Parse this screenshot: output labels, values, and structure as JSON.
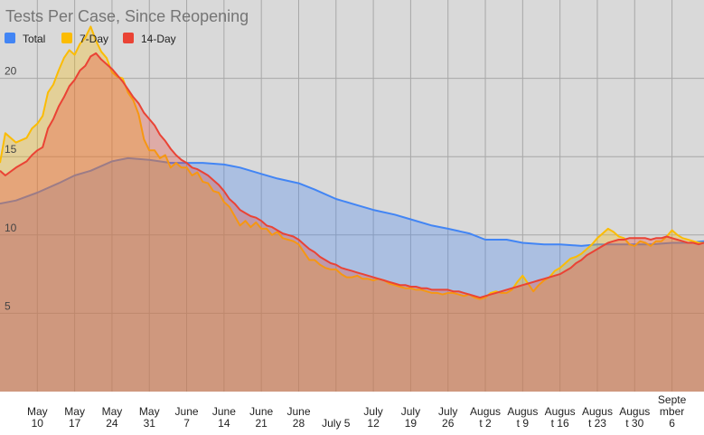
{
  "chart_data": {
    "type": "area",
    "title": "Tests Per Case, Since Reopening",
    "xlabel": "",
    "ylabel": "",
    "ylim": [
      0,
      25
    ],
    "grid": true,
    "legend_position": "top-left",
    "colors": {
      "plot_background": "#d9d9d9",
      "gridline": "#a8a8a8",
      "total": "#4285f4",
      "7-day": "#fbbc04",
      "14-day": "#ea4335"
    },
    "y_ticks": [
      5,
      10,
      15,
      20
    ],
    "x_ticks": [
      {
        "day": 10,
        "lines": [
          "May",
          "10"
        ]
      },
      {
        "day": 17,
        "lines": [
          "May",
          "17"
        ]
      },
      {
        "day": 24,
        "lines": [
          "May",
          "24"
        ]
      },
      {
        "day": 31,
        "lines": [
          "May",
          "31"
        ]
      },
      {
        "day": 38,
        "lines": [
          "June",
          "7"
        ]
      },
      {
        "day": 45,
        "lines": [
          "June",
          "14"
        ]
      },
      {
        "day": 52,
        "lines": [
          "June",
          "21"
        ]
      },
      {
        "day": 59,
        "lines": [
          "June",
          "28"
        ]
      },
      {
        "day": 66,
        "lines": [
          "July 5"
        ]
      },
      {
        "day": 73,
        "lines": [
          "July",
          "12"
        ]
      },
      {
        "day": 80,
        "lines": [
          "July",
          "19"
        ]
      },
      {
        "day": 87,
        "lines": [
          "July",
          "26"
        ]
      },
      {
        "day": 94,
        "lines": [
          "Augus",
          "t 2"
        ]
      },
      {
        "day": 101,
        "lines": [
          "Augus",
          "t 9"
        ]
      },
      {
        "day": 108,
        "lines": [
          "Augus",
          "t 16"
        ]
      },
      {
        "day": 115,
        "lines": [
          "Augus",
          "t 23"
        ]
      },
      {
        "day": 122,
        "lines": [
          "Augus",
          "t 30"
        ]
      },
      {
        "day": 129,
        "lines": [
          "Septe",
          "mber",
          "6"
        ]
      }
    ],
    "x_range": [
      3,
      135
    ],
    "series": [
      {
        "name": "Total",
        "points": [
          [
            3,
            12.0
          ],
          [
            6,
            12.2
          ],
          [
            10,
            12.7
          ],
          [
            14,
            13.3
          ],
          [
            17,
            13.8
          ],
          [
            20,
            14.1
          ],
          [
            24,
            14.7
          ],
          [
            27,
            14.9
          ],
          [
            31,
            14.8
          ],
          [
            35,
            14.6
          ],
          [
            38,
            14.6
          ],
          [
            41,
            14.6
          ],
          [
            45,
            14.5
          ],
          [
            48,
            14.3
          ],
          [
            52,
            13.9
          ],
          [
            55,
            13.6
          ],
          [
            59,
            13.3
          ],
          [
            62,
            12.9
          ],
          [
            66,
            12.3
          ],
          [
            70,
            11.9
          ],
          [
            73,
            11.6
          ],
          [
            77,
            11.3
          ],
          [
            80,
            11.0
          ],
          [
            84,
            10.6
          ],
          [
            87,
            10.4
          ],
          [
            91,
            10.1
          ],
          [
            94,
            9.7
          ],
          [
            98,
            9.7
          ],
          [
            101,
            9.5
          ],
          [
            105,
            9.4
          ],
          [
            108,
            9.4
          ],
          [
            112,
            9.3
          ],
          [
            115,
            9.4
          ],
          [
            118,
            9.4
          ],
          [
            122,
            9.4
          ],
          [
            125,
            9.4
          ],
          [
            129,
            9.5
          ],
          [
            132,
            9.5
          ],
          [
            135,
            9.6
          ]
        ]
      },
      {
        "name": "7-Day",
        "points": [
          [
            3,
            14.6
          ],
          [
            4,
            16.5
          ],
          [
            6,
            15.9
          ],
          [
            8,
            16.2
          ],
          [
            9,
            16.8
          ],
          [
            10,
            17.1
          ],
          [
            11,
            17.6
          ],
          [
            12,
            19.1
          ],
          [
            13,
            19.6
          ],
          [
            14,
            20.5
          ],
          [
            15,
            21.3
          ],
          [
            16,
            21.8
          ],
          [
            17,
            21.5
          ],
          [
            18,
            22.2
          ],
          [
            19,
            22.6
          ],
          [
            20,
            23.3
          ],
          [
            21,
            22.4
          ],
          [
            22,
            21.7
          ],
          [
            23,
            21.3
          ],
          [
            24,
            20.4
          ],
          [
            25,
            20.1
          ],
          [
            26,
            20.0
          ],
          [
            27,
            19.1
          ],
          [
            28,
            18.6
          ],
          [
            29,
            17.7
          ],
          [
            30,
            16.1
          ],
          [
            31,
            15.4
          ],
          [
            32,
            15.4
          ],
          [
            33,
            14.9
          ],
          [
            34,
            15.1
          ],
          [
            35,
            14.3
          ],
          [
            36,
            14.6
          ],
          [
            37,
            14.3
          ],
          [
            38,
            14.3
          ],
          [
            39,
            13.8
          ],
          [
            40,
            14.0
          ],
          [
            41,
            13.4
          ],
          [
            42,
            13.3
          ],
          [
            43,
            12.8
          ],
          [
            44,
            12.7
          ],
          [
            45,
            12.1
          ],
          [
            46,
            11.8
          ],
          [
            47,
            11.2
          ],
          [
            48,
            10.6
          ],
          [
            49,
            10.9
          ],
          [
            50,
            10.5
          ],
          [
            51,
            10.8
          ],
          [
            52,
            10.4
          ],
          [
            53,
            10.4
          ],
          [
            54,
            10.0
          ],
          [
            55,
            10.2
          ],
          [
            56,
            9.8
          ],
          [
            57,
            9.7
          ],
          [
            58,
            9.6
          ],
          [
            59,
            9.4
          ],
          [
            60,
            8.9
          ],
          [
            61,
            8.4
          ],
          [
            62,
            8.4
          ],
          [
            63,
            8.1
          ],
          [
            64,
            7.9
          ],
          [
            65,
            7.8
          ],
          [
            66,
            7.8
          ],
          [
            67,
            7.5
          ],
          [
            68,
            7.3
          ],
          [
            69,
            7.3
          ],
          [
            70,
            7.4
          ],
          [
            71,
            7.2
          ],
          [
            72,
            7.2
          ],
          [
            73,
            7.1
          ],
          [
            74,
            7.2
          ],
          [
            75,
            7.1
          ],
          [
            76,
            6.9
          ],
          [
            77,
            6.8
          ],
          [
            78,
            6.7
          ],
          [
            79,
            6.6
          ],
          [
            80,
            6.6
          ],
          [
            81,
            6.5
          ],
          [
            82,
            6.5
          ],
          [
            83,
            6.4
          ],
          [
            84,
            6.3
          ],
          [
            85,
            6.3
          ],
          [
            86,
            6.2
          ],
          [
            87,
            6.3
          ],
          [
            88,
            6.3
          ],
          [
            89,
            6.2
          ],
          [
            90,
            6.1
          ],
          [
            91,
            6.2
          ],
          [
            92,
            6.0
          ],
          [
            93,
            5.9
          ],
          [
            94,
            6.0
          ],
          [
            95,
            6.3
          ],
          [
            96,
            6.4
          ],
          [
            97,
            6.3
          ],
          [
            98,
            6.3
          ],
          [
            99,
            6.5
          ],
          [
            100,
            7.0
          ],
          [
            101,
            7.4
          ],
          [
            102,
            6.9
          ],
          [
            103,
            6.4
          ],
          [
            104,
            6.8
          ],
          [
            105,
            7.1
          ],
          [
            106,
            7.3
          ],
          [
            107,
            7.7
          ],
          [
            108,
            7.9
          ],
          [
            109,
            8.2
          ],
          [
            110,
            8.5
          ],
          [
            111,
            8.6
          ],
          [
            112,
            8.8
          ],
          [
            113,
            9.1
          ],
          [
            114,
            9.4
          ],
          [
            115,
            9.8
          ],
          [
            116,
            10.1
          ],
          [
            117,
            10.4
          ],
          [
            118,
            10.2
          ],
          [
            119,
            9.9
          ],
          [
            120,
            9.8
          ],
          [
            121,
            9.4
          ],
          [
            122,
            9.3
          ],
          [
            123,
            9.6
          ],
          [
            124,
            9.5
          ],
          [
            125,
            9.3
          ],
          [
            126,
            9.6
          ],
          [
            127,
            9.6
          ],
          [
            128,
            9.9
          ],
          [
            129,
            10.3
          ],
          [
            130,
            10.0
          ],
          [
            131,
            9.8
          ],
          [
            132,
            9.7
          ],
          [
            133,
            9.6
          ],
          [
            134,
            9.5
          ],
          [
            135,
            9.5
          ]
        ]
      },
      {
        "name": "14-Day",
        "points": [
          [
            3,
            14.1
          ],
          [
            4,
            13.8
          ],
          [
            6,
            14.3
          ],
          [
            8,
            14.7
          ],
          [
            9,
            15.1
          ],
          [
            10,
            15.4
          ],
          [
            11,
            15.6
          ],
          [
            12,
            16.8
          ],
          [
            13,
            17.4
          ],
          [
            14,
            18.2
          ],
          [
            15,
            18.8
          ],
          [
            16,
            19.5
          ],
          [
            17,
            19.9
          ],
          [
            18,
            20.5
          ],
          [
            19,
            20.8
          ],
          [
            20,
            21.4
          ],
          [
            21,
            21.6
          ],
          [
            22,
            21.2
          ],
          [
            23,
            20.9
          ],
          [
            24,
            20.6
          ],
          [
            25,
            20.2
          ],
          [
            26,
            19.8
          ],
          [
            27,
            19.3
          ],
          [
            28,
            18.8
          ],
          [
            29,
            18.4
          ],
          [
            30,
            17.8
          ],
          [
            31,
            17.4
          ],
          [
            32,
            17.0
          ],
          [
            33,
            16.4
          ],
          [
            34,
            16.0
          ],
          [
            35,
            15.5
          ],
          [
            36,
            15.1
          ],
          [
            37,
            14.8
          ],
          [
            38,
            14.6
          ],
          [
            39,
            14.3
          ],
          [
            40,
            14.2
          ],
          [
            41,
            14.0
          ],
          [
            42,
            13.8
          ],
          [
            43,
            13.5
          ],
          [
            44,
            13.2
          ],
          [
            45,
            12.8
          ],
          [
            46,
            12.3
          ],
          [
            47,
            12.0
          ],
          [
            48,
            11.6
          ],
          [
            49,
            11.4
          ],
          [
            50,
            11.2
          ],
          [
            51,
            11.1
          ],
          [
            52,
            10.9
          ],
          [
            53,
            10.6
          ],
          [
            54,
            10.5
          ],
          [
            55,
            10.3
          ],
          [
            56,
            10.1
          ],
          [
            57,
            10.0
          ],
          [
            58,
            9.9
          ],
          [
            59,
            9.7
          ],
          [
            60,
            9.4
          ],
          [
            61,
            9.1
          ],
          [
            62,
            8.9
          ],
          [
            63,
            8.6
          ],
          [
            64,
            8.4
          ],
          [
            65,
            8.2
          ],
          [
            66,
            8.1
          ],
          [
            67,
            7.9
          ],
          [
            68,
            7.8
          ],
          [
            69,
            7.7
          ],
          [
            70,
            7.6
          ],
          [
            71,
            7.5
          ],
          [
            72,
            7.4
          ],
          [
            73,
            7.3
          ],
          [
            74,
            7.2
          ],
          [
            75,
            7.1
          ],
          [
            76,
            7.0
          ],
          [
            77,
            6.9
          ],
          [
            78,
            6.8
          ],
          [
            79,
            6.8
          ],
          [
            80,
            6.7
          ],
          [
            81,
            6.7
          ],
          [
            82,
            6.6
          ],
          [
            83,
            6.6
          ],
          [
            84,
            6.5
          ],
          [
            85,
            6.5
          ],
          [
            86,
            6.5
          ],
          [
            87,
            6.5
          ],
          [
            88,
            6.4
          ],
          [
            89,
            6.4
          ],
          [
            90,
            6.3
          ],
          [
            91,
            6.2
          ],
          [
            92,
            6.1
          ],
          [
            93,
            6.0
          ],
          [
            94,
            6.1
          ],
          [
            95,
            6.2
          ],
          [
            96,
            6.3
          ],
          [
            97,
            6.4
          ],
          [
            98,
            6.5
          ],
          [
            99,
            6.6
          ],
          [
            100,
            6.7
          ],
          [
            101,
            6.8
          ],
          [
            102,
            6.9
          ],
          [
            103,
            7.0
          ],
          [
            104,
            7.1
          ],
          [
            105,
            7.2
          ],
          [
            106,
            7.3
          ],
          [
            107,
            7.4
          ],
          [
            108,
            7.5
          ],
          [
            109,
            7.7
          ],
          [
            110,
            7.9
          ],
          [
            111,
            8.2
          ],
          [
            112,
            8.4
          ],
          [
            113,
            8.7
          ],
          [
            114,
            8.9
          ],
          [
            115,
            9.1
          ],
          [
            116,
            9.3
          ],
          [
            117,
            9.5
          ],
          [
            118,
            9.6
          ],
          [
            119,
            9.7
          ],
          [
            120,
            9.7
          ],
          [
            121,
            9.8
          ],
          [
            122,
            9.8
          ],
          [
            123,
            9.8
          ],
          [
            124,
            9.8
          ],
          [
            125,
            9.7
          ],
          [
            126,
            9.8
          ],
          [
            127,
            9.8
          ],
          [
            128,
            9.9
          ],
          [
            129,
            9.8
          ],
          [
            130,
            9.7
          ],
          [
            131,
            9.6
          ],
          [
            132,
            9.5
          ],
          [
            133,
            9.5
          ],
          [
            134,
            9.4
          ],
          [
            135,
            9.5
          ]
        ]
      }
    ]
  }
}
